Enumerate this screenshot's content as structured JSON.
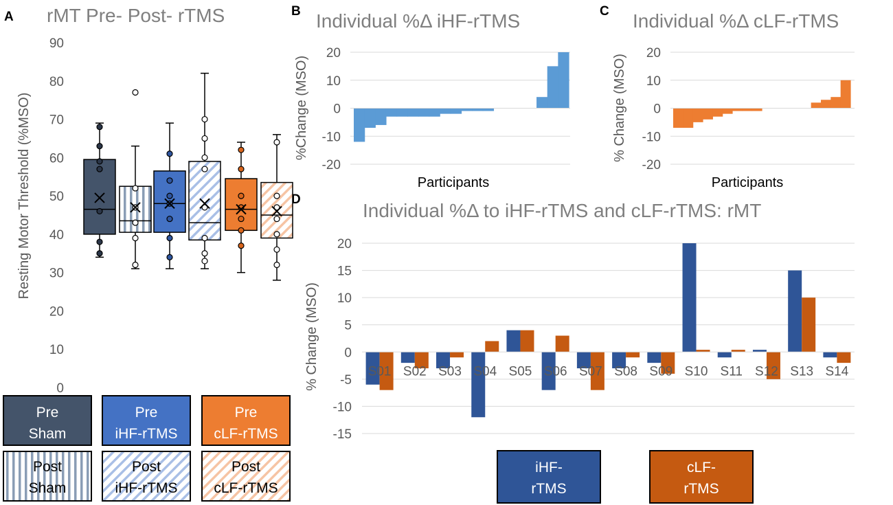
{
  "panel_letters": {
    "a": "A",
    "b": "B",
    "c": "C",
    "d": "D"
  },
  "colors": {
    "sham": "#44546a",
    "ihf_light": "#4472c4",
    "clf_light": "#ed7d31",
    "ihf_bar": "#5b9bd5",
    "clf_bar": "#ed7d31",
    "d_ihf": "#2f5597",
    "d_clf": "#c55a11",
    "grid": "#d9d9d9"
  },
  "chart_data": [
    {
      "id": "A",
      "type": "box",
      "title": "rMT Pre- Post- rTMS",
      "ylabel": "Resting Motor Threshold (%MSO)",
      "ylim": [
        0,
        90
      ],
      "yticks": [
        0,
        10,
        20,
        30,
        40,
        50,
        60,
        70,
        80,
        90
      ],
      "groups": [
        {
          "name": "Pre Sham",
          "min": 34,
          "q1": 40,
          "median": 46.5,
          "q3": 59.5,
          "max": 69,
          "mean": 49.5,
          "points": [
            35,
            38,
            46,
            57,
            59,
            63,
            68
          ],
          "fill": "sham",
          "pattern": "none"
        },
        {
          "name": "Post Sham",
          "min": 31,
          "q1": 40.5,
          "median": 43.5,
          "q3": 52.5,
          "max": 63,
          "mean": 47,
          "points": [
            32,
            39,
            43,
            47,
            52,
            77
          ],
          "fill": "sham",
          "pattern": "vertical"
        },
        {
          "name": "Pre iHF-rTMS",
          "min": 31,
          "q1": 40.5,
          "median": 48,
          "q3": 56.5,
          "max": 69,
          "mean": 48,
          "points": [
            34,
            39,
            44,
            48,
            50,
            54,
            61
          ],
          "fill": "ihf",
          "pattern": "none"
        },
        {
          "name": "Post iHF-rTMS",
          "min": 31,
          "q1": 38.5,
          "median": 43,
          "q3": 59,
          "max": 82,
          "mean": 48,
          "points": [
            33,
            35,
            39,
            47,
            57,
            60,
            65,
            70
          ],
          "fill": "ihf",
          "pattern": "diagonal"
        },
        {
          "name": "Pre cLF-rTMS",
          "min": 30,
          "q1": 41,
          "median": 46.5,
          "q3": 54.5,
          "max": 64,
          "mean": 46.5,
          "points": [
            37,
            41,
            44,
            47,
            50,
            57,
            62
          ],
          "fill": "clf",
          "pattern": "none"
        },
        {
          "name": "Post cLF-rTMS",
          "min": 28,
          "q1": 39,
          "median": 45,
          "q3": 53.5,
          "max": 66,
          "mean": 46,
          "points": [
            32,
            36,
            40,
            44,
            47,
            50,
            64
          ],
          "fill": "clf",
          "pattern": "diagonal"
        }
      ]
    },
    {
      "id": "B",
      "type": "bar",
      "title": "Individual %Δ iHF-rTMS",
      "ylabel": "%Change (MSO)",
      "xlabel": "Participants",
      "ylim": [
        -20,
        20
      ],
      "yticks": [
        -20,
        -10,
        0,
        10,
        20
      ],
      "values": [
        -12,
        -7,
        -6,
        -3,
        -3,
        -3,
        -3,
        -3,
        -2,
        -2,
        -1,
        -1,
        -1,
        0,
        0,
        0,
        0,
        4,
        15,
        20
      ],
      "color": "ihf_bar"
    },
    {
      "id": "C",
      "type": "bar",
      "title": "Individual %Δ cLF-rTMS",
      "ylabel": "% Change (MSO)",
      "xlabel": "Participants",
      "ylim": [
        -20,
        20
      ],
      "yticks": [
        -20,
        -10,
        0,
        10,
        20
      ],
      "values": [
        -7,
        -7,
        -5,
        -4,
        -3,
        -2,
        -1,
        -1,
        -1,
        0,
        0,
        0,
        0,
        0,
        2,
        3,
        4,
        10
      ],
      "color": "clf_bar"
    },
    {
      "id": "D",
      "type": "bar",
      "title": "Individual %Δ  to iHF-rTMS and cLF-rTMS: rMT",
      "ylabel": "% Change (MSO)",
      "ylim": [
        -15,
        20
      ],
      "yticks": [
        -15,
        -10,
        -5,
        0,
        5,
        10,
        15,
        20
      ],
      "categories": [
        "S01",
        "S02",
        "S03",
        "S04",
        "S05",
        "S06",
        "S07",
        "S08",
        "S09",
        "S10",
        "S11",
        "S12",
        "S13",
        "S14"
      ],
      "series": [
        {
          "name": "iHF-rTMS",
          "values": [
            -6,
            -2,
            -3,
            -12,
            4,
            -7,
            -3,
            -3,
            -2,
            20,
            -1,
            0.4,
            15,
            -1
          ],
          "color": "d_ihf"
        },
        {
          "name": "cLF-rTMS",
          "values": [
            -7,
            -3,
            -1,
            2,
            4,
            3,
            -7,
            -1,
            -4,
            0.4,
            0.4,
            -5,
            10,
            -2
          ],
          "color": "d_clf"
        }
      ]
    }
  ],
  "legend_a": [
    [
      {
        "line1": "Pre",
        "line2": "Sham"
      },
      {
        "line1": "Pre",
        "line2": "iHF-rTMS"
      },
      {
        "line1": "Pre",
        "line2": "cLF-rTMS"
      }
    ],
    [
      {
        "line1": "Post",
        "line2": "Sham"
      },
      {
        "line1": "Post",
        "line2": "iHF-rTMS"
      },
      {
        "line1": "Post",
        "line2": "cLF-rTMS"
      }
    ]
  ],
  "legend_d": [
    {
      "line1": "iHF-",
      "line2": "rTMS"
    },
    {
      "line1": "cLF-",
      "line2": "rTMS"
    }
  ]
}
